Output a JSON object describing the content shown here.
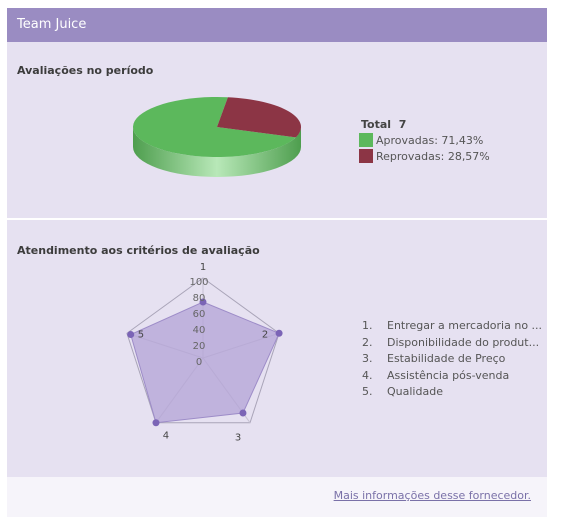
{
  "header": {
    "title": "Team Juice"
  },
  "evaluations": {
    "title": "Avaliações no período",
    "total_label": "Total",
    "total_value": "7",
    "legend": [
      {
        "label": "Aprovadas: 71,43%",
        "color": "#5cb85c"
      },
      {
        "label": "Reprovadas: 28,57%",
        "color": "#8c3545"
      }
    ]
  },
  "criteria": {
    "title": "Atendimento aos critérios de avaliação",
    "items": [
      {
        "num": "1.",
        "text": "Entregar a mercadoria no ..."
      },
      {
        "num": "2.",
        "text": "Disponibilidade do produt..."
      },
      {
        "num": "3.",
        "text": "Estabilidade de Preço"
      },
      {
        "num": "4.",
        "text": "Assistência pós-venda"
      },
      {
        "num": "5.",
        "text": "Qualidade"
      }
    ]
  },
  "chart_data": [
    {
      "type": "pie",
      "title": "",
      "categories": [
        "Aprovadas",
        "Reprovadas"
      ],
      "values": [
        71.43,
        28.57
      ],
      "colors": [
        "#5cb85c",
        "#8c3545"
      ]
    },
    {
      "type": "radar",
      "title": "",
      "axes": [
        "1",
        "2",
        "3",
        "4",
        "5"
      ],
      "ticks": [
        "100",
        "80",
        "60",
        "40",
        "20",
        "0"
      ],
      "range": [
        0,
        100
      ],
      "values": [
        70,
        100,
        85,
        100,
        95
      ],
      "fill_color": "#b3a3d6",
      "point_color": "#7b64b6"
    }
  ],
  "footer": {
    "link_label": "Mais informações desse fornecedor."
  }
}
